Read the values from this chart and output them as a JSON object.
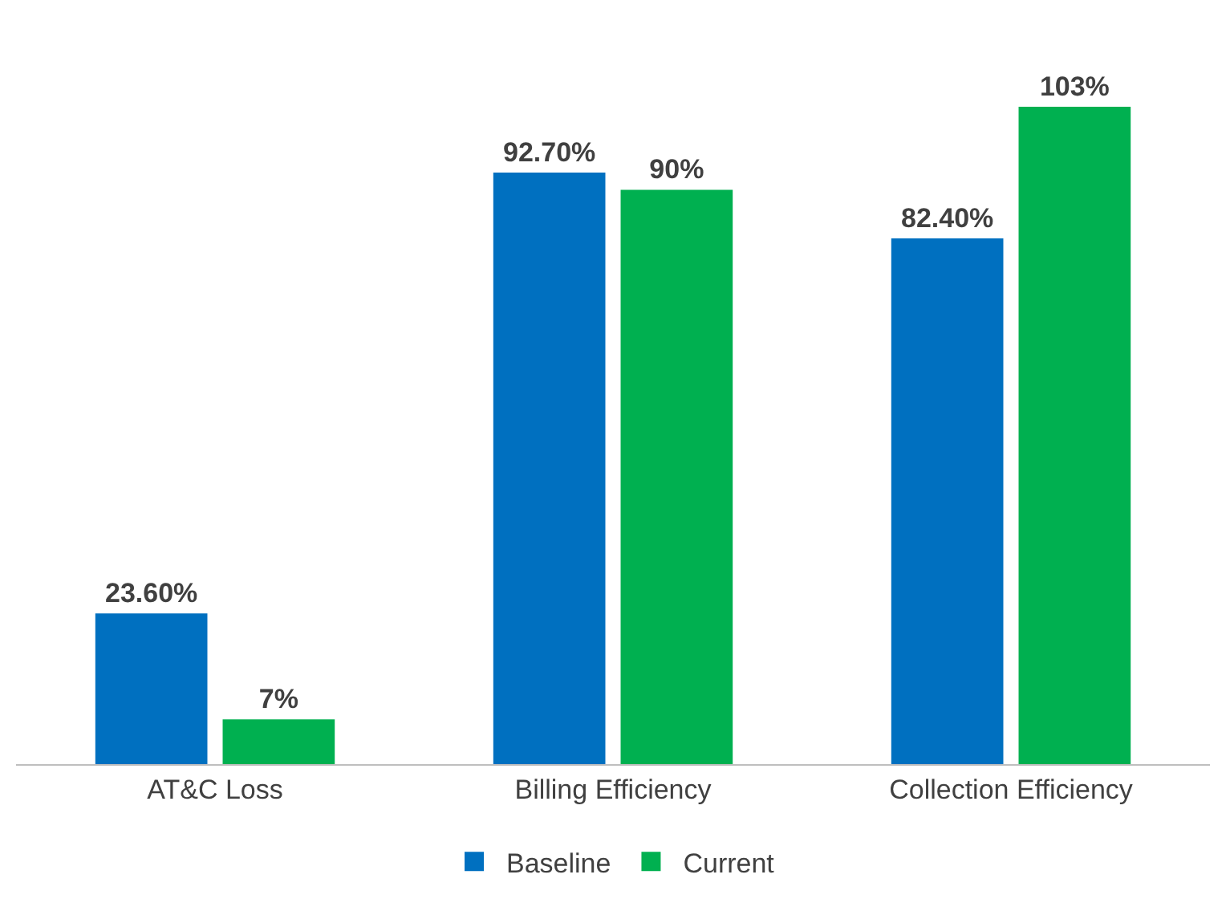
{
  "chart_data": {
    "type": "bar",
    "categories": [
      "AT&C Loss",
      "Billing Efficiency",
      "Collection Efficiency"
    ],
    "series": [
      {
        "name": "Baseline",
        "color": "#0070c0",
        "values": [
          23.6,
          92.7,
          82.4
        ],
        "value_labels": [
          "23.60%",
          "92.70%",
          "82.40%"
        ]
      },
      {
        "name": "Current",
        "color": "#00b050",
        "values": [
          7,
          90,
          103
        ],
        "value_labels": [
          "7%",
          "90%",
          "103%"
        ]
      }
    ],
    "legend": "bottom"
  }
}
